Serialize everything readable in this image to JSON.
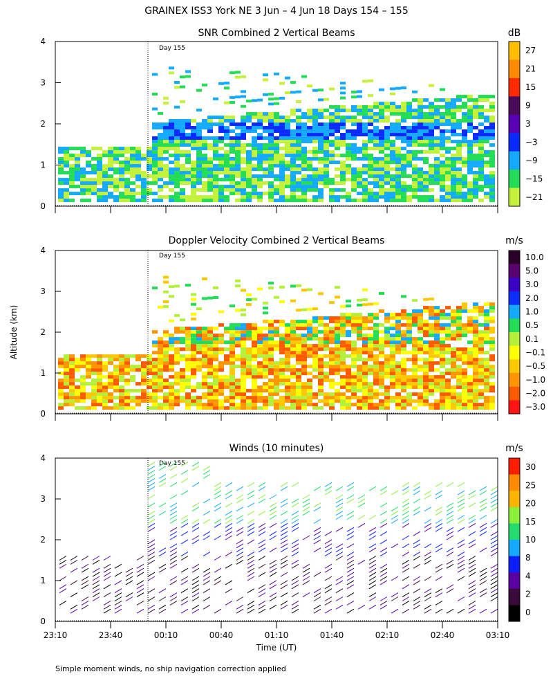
{
  "figure": {
    "title": "GRAINEX ISS3 York NE   3 Jun –  4 Jun 18 Days 154 – 155",
    "footnote": "Simple moment winds, no ship navigation correction applied",
    "ylabel": "Altitude (km)",
    "xlabel": "Time (UT)",
    "day_marker": "Day 155"
  },
  "chart_data": [
    {
      "type": "heatmap",
      "title": "SNR Combined 2 Vertical Beams",
      "unit": "dB",
      "y_ticks": [
        "0",
        "1",
        "2",
        "3",
        "4"
      ],
      "ylim": [
        0,
        4
      ],
      "colorbar": {
        "labels": [
          "27",
          "21",
          "15",
          "9",
          "3",
          "−3",
          "−9",
          "−15",
          "−21"
        ],
        "colors": [
          "#ffbe00",
          "#ff8c00",
          "#ff2a00",
          "#4b0a5a",
          "#5a00b4",
          "#0a2aff",
          "#14aaff",
          "#22dd55",
          "#c4f23a"
        ]
      }
    },
    {
      "type": "heatmap",
      "title": "Doppler Velocity Combined 2 Vertical Beams",
      "unit": "m/s",
      "y_ticks": [
        "0",
        "1",
        "2",
        "3",
        "4"
      ],
      "ylim": [
        0,
        4
      ],
      "colorbar": {
        "labels": [
          "10.0",
          "5.0",
          "3.0",
          "2.0",
          "1.0",
          "0.5",
          "0.1",
          "−0.1",
          "−0.5",
          "−1.0",
          "−2.0",
          "−3.0"
        ],
        "colors": [
          "#2a002a",
          "#5a0070",
          "#3a00c8",
          "#0a30ff",
          "#14aaff",
          "#22dd55",
          "#b4f03a",
          "#ffff00",
          "#ffc800",
          "#ff9600",
          "#ff5a00",
          "#ff1414"
        ]
      }
    },
    {
      "type": "scatter",
      "title": "Winds (10 minutes)",
      "unit": "m/s",
      "y_ticks": [
        "0",
        "1",
        "2",
        "3",
        "4"
      ],
      "ylim": [
        0,
        4
      ],
      "x_ticks": [
        "23:10",
        "23:40",
        "00:10",
        "00:40",
        "01:10",
        "01:40",
        "02:10",
        "02:40",
        "03:10"
      ],
      "colorbar": {
        "labels": [
          "30",
          "25",
          "20",
          "15",
          "10",
          "8",
          "4",
          "2",
          "0"
        ],
        "colors": [
          "#ff1e00",
          "#ff8c00",
          "#ffb400",
          "#8cf03a",
          "#22dd6e",
          "#14aaff",
          "#0a1eff",
          "#5a00a0",
          "#3a0a3a",
          "#000000"
        ]
      }
    }
  ]
}
